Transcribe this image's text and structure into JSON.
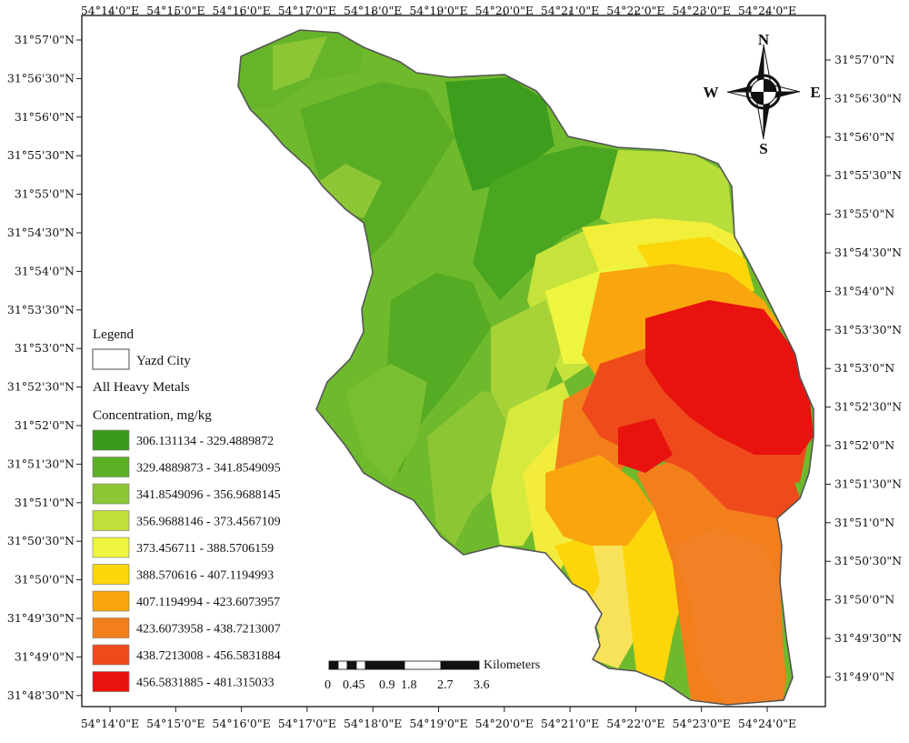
{
  "map": {
    "top_lon_labels": [
      "54°14'0\"E",
      "54°15'0\"E",
      "54°16'0\"E",
      "54°17'0\"E",
      "54°18'0\"E",
      "54°19'0\"E",
      "54°20'0\"E",
      "54°21'0\"E",
      "54°22'0\"E",
      "54°23'0\"E",
      "54°24'0\"E"
    ],
    "bottom_lon_labels": [
      "54°14'0\"E",
      "54°15'0\"E",
      "54°16'0\"E",
      "54°17'0\"E",
      "54°18'0\"E",
      "54°19'0\"E",
      "54°20'0\"E",
      "54°21'0\"E",
      "54°22'0\"E",
      "54°23'0\"E",
      "54°24'0\"E"
    ],
    "left_lat_labels": [
      "31°57'0\"N",
      "31°56'30\"N",
      "31°56'0\"N",
      "31°55'30\"N",
      "31°55'0\"N",
      "31°54'30\"N",
      "31°54'0\"N",
      "31°53'30\"N",
      "31°53'0\"N",
      "31°52'30\"N",
      "31°52'0\"N",
      "31°51'30\"N",
      "31°51'0\"N",
      "31°50'30\"N",
      "31°50'0\"N",
      "31°49'30\"N",
      "31°49'0\"N",
      "31°48'30\"N"
    ],
    "right_lat_labels": [
      "31°57'0\"N",
      "31°56'30\"N",
      "31°56'0\"N",
      "31°55'30\"N",
      "31°55'0\"N",
      "31°54'30\"N",
      "31°54'0\"N",
      "31°53'30\"N",
      "31°53'0\"N",
      "31°52'30\"N",
      "31°52'0\"N",
      "31°51'30\"N",
      "31°51'0\"N",
      "31°50'30\"N",
      "31°50'0\"N",
      "31°49'30\"N",
      "31°49'0\"N"
    ],
    "compass": {
      "north": "N",
      "south": "S",
      "east": "E",
      "west": "W"
    }
  },
  "legend": {
    "title": "Legend",
    "city_label": "Yazd City",
    "layer_label": "All Heavy Metals",
    "concentration_label": "Concentration, mg/kg",
    "classes": [
      {
        "label": "306.131134 - 329.4889872",
        "color": "#3a9a1b"
      },
      {
        "label": "329.4889873 - 341.8549095",
        "color": "#5db025"
      },
      {
        "label": "341.8549096 - 356.9688145",
        "color": "#8cc634"
      },
      {
        "label": "356.9688146 - 373.4567109",
        "color": "#bfe03a"
      },
      {
        "label": "373.456711 - 388.5706159",
        "color": "#eef53f"
      },
      {
        "label": "388.570616 - 407.1194993",
        "color": "#fcd60a"
      },
      {
        "label": "407.1194994 - 423.6073957",
        "color": "#f9a60e"
      },
      {
        "label": "423.6073958 - 438.7213007",
        "color": "#f37f1c"
      },
      {
        "label": "438.7213008 - 456.5831884",
        "color": "#ef4a1b"
      },
      {
        "label": "456.5831885 - 481.315033",
        "color": "#e8120e"
      }
    ]
  },
  "scale_bar": {
    "unit": "Kilometers",
    "ticks": [
      "0",
      "0.45",
      "0.9",
      "1.8",
      "2.7",
      "3.6"
    ]
  }
}
